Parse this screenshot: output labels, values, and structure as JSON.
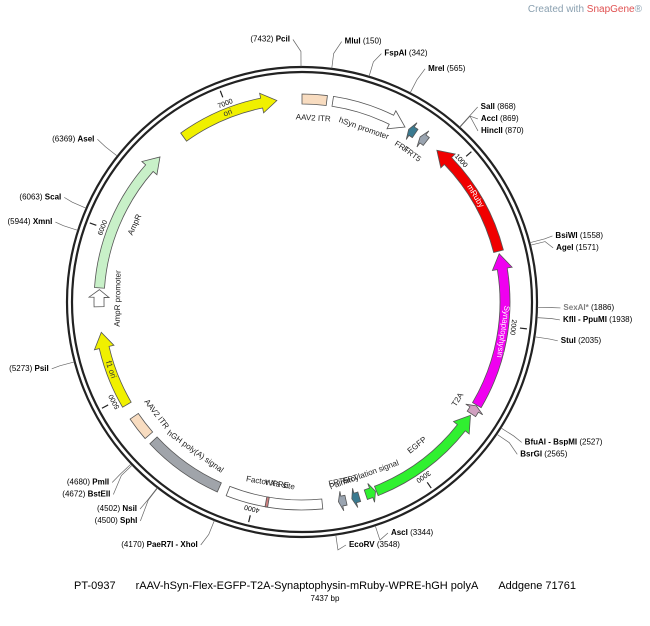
{
  "watermark": {
    "prefix": "Created with ",
    "brand": "SnapGene",
    "suffix": "®"
  },
  "title": {
    "id": "PT-0937",
    "name": "rAAV-hSyn-Flex-EGFP-T2A-Synaptophysin-mRuby-WPRE-hGH polyA",
    "source": "Addgene  71761",
    "length_label": "7437 bp"
  },
  "plasmid_length": 7437,
  "ticks": [
    {
      "pos": 1000,
      "label": "1000"
    },
    {
      "pos": 2000,
      "label": "2000"
    },
    {
      "pos": 3000,
      "label": "3000"
    },
    {
      "pos": 4000,
      "label": "4000"
    },
    {
      "pos": 5000,
      "label": "5000"
    },
    {
      "pos": 6000,
      "label": "6000"
    },
    {
      "pos": 7000,
      "label": "7000"
    }
  ],
  "sites": [
    {
      "name": "PciI",
      "pos_label": "(7432)",
      "pos": 7432,
      "color": "#000000"
    },
    {
      "name": "MluI",
      "pos_label": "(150)",
      "pos": 150,
      "color": "#000000"
    },
    {
      "name": "FspAI",
      "pos_label": "(342)",
      "pos": 342,
      "color": "#000000"
    },
    {
      "name": "MreI",
      "pos_label": "(565)",
      "pos": 565,
      "color": "#000000"
    },
    {
      "name": "SalI",
      "pos_label": "(868)",
      "pos": 868,
      "color": "#000000"
    },
    {
      "name": "AccI",
      "pos_label": "(869)",
      "pos": 869,
      "color": "#000000"
    },
    {
      "name": "HincII",
      "pos_label": "(870)",
      "pos": 870,
      "color": "#000000"
    },
    {
      "name": "BsiWI",
      "pos_label": "(1558)",
      "pos": 1558,
      "color": "#000000"
    },
    {
      "name": "AgeI",
      "pos_label": "(1571)",
      "pos": 1571,
      "color": "#000000"
    },
    {
      "name": "SexAI*",
      "pos_label": "(1886)",
      "pos": 1886,
      "color": "#808080"
    },
    {
      "name": "KflI - PpuMI",
      "pos_label": "(1938)",
      "pos": 1938,
      "color": "#000000"
    },
    {
      "name": "StuI",
      "pos_label": "(2035)",
      "pos": 2035,
      "color": "#000000"
    },
    {
      "name": "BfuAI - BspMI",
      "pos_label": "(2527)",
      "pos": 2527,
      "color": "#000000"
    },
    {
      "name": "BsrGI",
      "pos_label": "(2565)",
      "pos": 2565,
      "color": "#000000"
    },
    {
      "name": "AscI",
      "pos_label": "(3344)",
      "pos": 3344,
      "color": "#000000"
    },
    {
      "name": "EcoRV",
      "pos_label": "(3548)",
      "pos": 3548,
      "color": "#000000"
    },
    {
      "name": "PaeR7I - XhoI",
      "pos_label": "(4170)",
      "pos": 4170,
      "color": "#000000"
    },
    {
      "name": "SphI",
      "pos_label": "(4500)",
      "pos": 4500,
      "color": "#000000"
    },
    {
      "name": "NsiI",
      "pos_label": "(4502)",
      "pos": 4502,
      "color": "#000000"
    },
    {
      "name": "BstEII",
      "pos_label": "(4672)",
      "pos": 4672,
      "color": "#000000"
    },
    {
      "name": "PmlI",
      "pos_label": "(4680)",
      "pos": 4680,
      "color": "#000000"
    },
    {
      "name": "PsiI",
      "pos_label": "(5273)",
      "pos": 5273,
      "color": "#000000"
    },
    {
      "name": "XmnI",
      "pos_label": "(5944)",
      "pos": 5944,
      "color": "#000000"
    },
    {
      "name": "ScaI",
      "pos_label": "(6063)",
      "pos": 6063,
      "color": "#000000"
    },
    {
      "name": "AseI",
      "pos_label": "(6369)",
      "pos": 6369,
      "color": "#000000"
    }
  ],
  "features": [
    {
      "name": "AAV2 ITR",
      "start": 0,
      "end": 145,
      "dir": 0,
      "color": "#f8dcc0",
      "label_inside": false
    },
    {
      "name": "hSyn promoter",
      "start": 180,
      "end": 630,
      "dir": 1,
      "color": "#ffffff",
      "label_inside": false
    },
    {
      "name": "FRT",
      "start": 655,
      "end": 700,
      "dir": -1,
      "color": "#3a7a90",
      "label_inside": false
    },
    {
      "name": "FRT5",
      "start": 735,
      "end": 780,
      "dir": -1,
      "color": "#9aa4b0",
      "label_inside": false
    },
    {
      "name": "mRuby",
      "start": 860,
      "end": 1560,
      "dir": -1,
      "color": "#f00000",
      "label_inside": true
    },
    {
      "name": "Synaptophysin",
      "start": 1575,
      "end": 2490,
      "dir": -1,
      "color": "#f000f0",
      "label_inside": true
    },
    {
      "name": "T2A",
      "start": 2495,
      "end": 2550,
      "dir": -1,
      "color": "#d0a0c0",
      "label_inside": false
    },
    {
      "name": "EGFP",
      "start": 2560,
      "end": 3275,
      "dir": -1,
      "color": "#30f030",
      "label_inside": false
    },
    {
      "name": "Palmitoylation signal",
      "start": 3280,
      "end": 3340,
      "dir": -1,
      "color": "#30f030",
      "label_inside": false
    },
    {
      "name": "FRT",
      "start": 3380,
      "end": 3425,
      "dir": 1,
      "color": "#3a7a90",
      "label_inside": false
    },
    {
      "name": "FRT5",
      "start": 3460,
      "end": 3505,
      "dir": 1,
      "color": "#9aa4b0",
      "label_inside": false
    },
    {
      "name": "WPRE",
      "start": 3600,
      "end": 4160,
      "dir": 0,
      "color": "#ffffff",
      "label_inside": false
    },
    {
      "name": "Factor Xa site",
      "start": 3915,
      "end": 3930,
      "dir": 0,
      "color": "#d08080",
      "label_inside": false
    },
    {
      "name": "hGH poly(A) signal",
      "start": 4215,
      "end": 4690,
      "dir": 0,
      "color": "#a0a4aa",
      "label_inside": false
    },
    {
      "name": "AAV2 ITR",
      "start": 4730,
      "end": 4870,
      "dir": 0,
      "color": "#f8dcc0",
      "label_inside": false
    },
    {
      "name": "f1 ori",
      "start": 4950,
      "end": 5400,
      "dir": 1,
      "color": "#f0f000",
      "label_inside": true
    },
    {
      "name": "AmpR promoter",
      "start": 5550,
      "end": 5650,
      "dir": 1,
      "color": "#ffffff",
      "label_inside": false
    },
    {
      "name": "AmpR",
      "start": 5660,
      "end": 6520,
      "dir": 1,
      "color": "#c8f0c8",
      "label_inside": false
    },
    {
      "name": "ori",
      "start": 6700,
      "end": 7290,
      "dir": 1,
      "color": "#f0f000",
      "label_inside": true
    }
  ]
}
